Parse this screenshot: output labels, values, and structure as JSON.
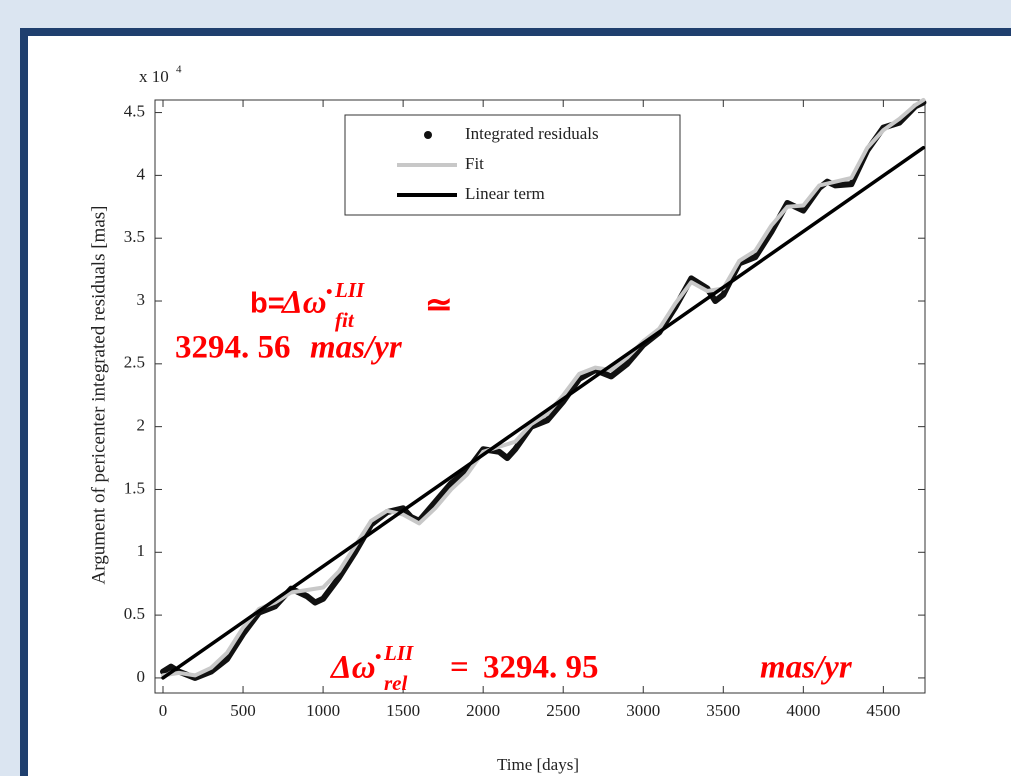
{
  "chart_data": {
    "type": "line",
    "x_label": "Time [days]",
    "y_label": "Argument of pericenter integrated residuals [mas]",
    "y_multiplier": {
      "base": "x 10",
      "exponent": "4"
    },
    "xlim": [
      -50,
      4760
    ],
    "ylim": [
      -0.12,
      4.6
    ],
    "xticks": [
      0,
      500,
      1000,
      1500,
      2000,
      2500,
      3000,
      3500,
      4000,
      4500
    ],
    "yticks": [
      0,
      0.5,
      1,
      1.5,
      2,
      2.5,
      3,
      3.5,
      4,
      4.5
    ],
    "legend_position": "top",
    "series": [
      {
        "name": "Integrated residuals",
        "color": "#111111",
        "style": "dots",
        "x": [
          0,
          50,
          100,
          200,
          300,
          400,
          500,
          600,
          700,
          800,
          900,
          950,
          1000,
          1100,
          1200,
          1300,
          1400,
          1500,
          1550,
          1600,
          1700,
          1800,
          1900,
          2000,
          2100,
          2150,
          2200,
          2300,
          2400,
          2500,
          2600,
          2700,
          2800,
          2900,
          3000,
          3100,
          3200,
          3300,
          3400,
          3450,
          3500,
          3600,
          3700,
          3800,
          3900,
          4000,
          4100,
          4150,
          4200,
          4300,
          4400,
          4500,
          4600,
          4700,
          4750
        ],
        "values": [
          0.05,
          0.09,
          0.05,
          0.0,
          0.05,
          0.15,
          0.35,
          0.52,
          0.57,
          0.71,
          0.65,
          0.6,
          0.63,
          0.8,
          1.0,
          1.22,
          1.32,
          1.35,
          1.28,
          1.25,
          1.4,
          1.55,
          1.65,
          1.82,
          1.8,
          1.75,
          1.82,
          2.0,
          2.05,
          2.2,
          2.38,
          2.45,
          2.4,
          2.5,
          2.65,
          2.75,
          2.95,
          3.18,
          3.1,
          3.0,
          3.05,
          3.3,
          3.35,
          3.55,
          3.78,
          3.72,
          3.9,
          3.95,
          3.92,
          3.93,
          4.2,
          4.38,
          4.42,
          4.55,
          4.58
        ]
      },
      {
        "name": "Fit",
        "color": "#c8c8c8",
        "style": "line",
        "x": [
          0,
          100,
          200,
          300,
          400,
          500,
          600,
          700,
          800,
          900,
          1000,
          1100,
          1200,
          1300,
          1400,
          1500,
          1600,
          1700,
          1800,
          1900,
          2000,
          2100,
          2200,
          2300,
          2400,
          2500,
          2600,
          2700,
          2800,
          2900,
          3000,
          3100,
          3200,
          3300,
          3400,
          3500,
          3600,
          3700,
          3800,
          3900,
          4000,
          4100,
          4200,
          4300,
          4400,
          4500,
          4600,
          4700,
          4750
        ],
        "values": [
          0.02,
          0.04,
          0.02,
          0.08,
          0.2,
          0.4,
          0.55,
          0.6,
          0.68,
          0.7,
          0.72,
          0.85,
          1.05,
          1.25,
          1.33,
          1.3,
          1.23,
          1.35,
          1.5,
          1.62,
          1.8,
          1.84,
          1.88,
          2.02,
          2.1,
          2.25,
          2.42,
          2.47,
          2.45,
          2.55,
          2.68,
          2.78,
          2.98,
          3.15,
          3.08,
          3.1,
          3.32,
          3.4,
          3.6,
          3.75,
          3.76,
          3.92,
          3.95,
          3.98,
          4.22,
          4.36,
          4.45,
          4.56,
          4.6
        ]
      },
      {
        "name": "Linear term",
        "color": "#000000",
        "style": "line",
        "x": [
          0,
          4750
        ],
        "values": [
          0.0,
          4.22
        ]
      }
    ],
    "annotations": [
      {
        "prefix": "b=",
        "symbol": "Δω̇",
        "sup": "LII",
        "sub": "fit",
        "relation": "≃",
        "number": "3294. 56",
        "unit": "mas/yr",
        "color": "#ff0000"
      },
      {
        "symbol": "Δω̇",
        "sup": "LII",
        "sub": "rel",
        "relation": "=",
        "number": "3294. 95",
        "unit": "mas/yr",
        "color": "#ff0000"
      }
    ]
  }
}
